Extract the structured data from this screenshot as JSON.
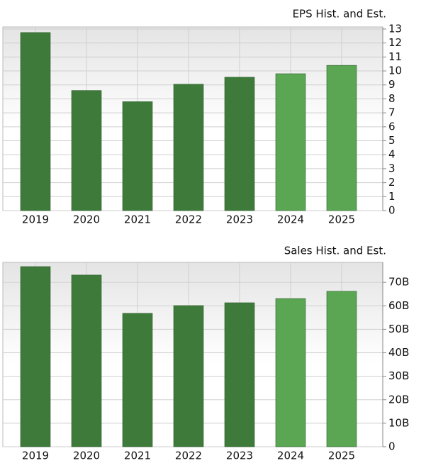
{
  "chart_data": [
    {
      "type": "bar",
      "title": "EPS Hist. and Est.",
      "categories": [
        "2019",
        "2020",
        "2021",
        "2022",
        "2023",
        "2024",
        "2025"
      ],
      "values": [
        12.75,
        8.6,
        7.8,
        9.05,
        9.55,
        9.8,
        10.4
      ],
      "colors": [
        "#3e7a3a",
        "#3e7a3a",
        "#3e7a3a",
        "#3e7a3a",
        "#3e7a3a",
        "#5aa653",
        "#5aa653"
      ],
      "ylim": [
        0,
        13.15
      ],
      "yticks": [
        0,
        1,
        2,
        3,
        4,
        5,
        6,
        7,
        8,
        9,
        10,
        11,
        12,
        13
      ],
      "grid": true
    },
    {
      "type": "bar",
      "title": "Sales Hist. and Est.",
      "categories": [
        "2019",
        "2020",
        "2021",
        "2022",
        "2023",
        "2024",
        "2025"
      ],
      "values": [
        76700000000,
        73100000000,
        56800000000,
        60100000000,
        61300000000,
        63100000000,
        66200000000
      ],
      "colors": [
        "#3e7a3a",
        "#3e7a3a",
        "#3e7a3a",
        "#3e7a3a",
        "#3e7a3a",
        "#5aa653",
        "#5aa653"
      ],
      "ylim": [
        0,
        78500000000
      ],
      "yticks": [
        0,
        {
          "value": 10000000000,
          "label": "10B"
        },
        {
          "value": 20000000000,
          "label": "20B"
        },
        {
          "value": 30000000000,
          "label": "30B"
        },
        {
          "value": 40000000000,
          "label": "40B"
        },
        {
          "value": 50000000000,
          "label": "50B"
        },
        {
          "value": 60000000000,
          "label": "60B"
        },
        {
          "value": 70000000000,
          "label": "70B"
        }
      ],
      "grid": true
    }
  ]
}
